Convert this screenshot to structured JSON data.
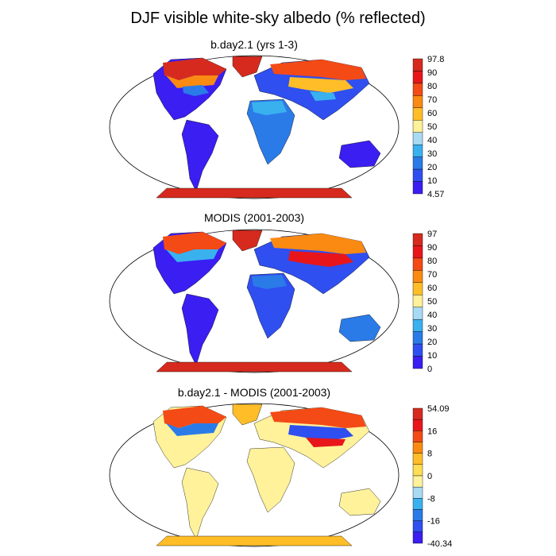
{
  "title": "DJF visible white-sky albedo (% reflected)",
  "panels": [
    {
      "title": "b.day2.1 (yrs 1-3)",
      "colorbar": {
        "labels": [
          "97.8",
          "90",
          "80",
          "70",
          "60",
          "50",
          "40",
          "30",
          "20",
          "10",
          "4.57"
        ],
        "colors": [
          "#d62a1f",
          "#e8161b",
          "#f44a16",
          "#fb8a12",
          "#ffbe28",
          "#fff09a",
          "#a8daf4",
          "#3ab1ef",
          "#2a7be8",
          "#2f4ff0",
          "#3a1ef2"
        ]
      }
    },
    {
      "title": "MODIS (2001-2003)",
      "colorbar": {
        "labels": [
          "97",
          "90",
          "80",
          "70",
          "60",
          "50",
          "40",
          "30",
          "20",
          "10",
          "0"
        ],
        "colors": [
          "#d62a1f",
          "#e8161b",
          "#f44a16",
          "#fb8a12",
          "#ffbe28",
          "#fff09a",
          "#a8daf4",
          "#3ab1ef",
          "#2a7be8",
          "#2f4ff0",
          "#3a1ef2"
        ]
      }
    },
    {
      "title": "b.day2.1 - MODIS (2001-2003)",
      "colorbar": {
        "labels": [
          "54.09",
          "16",
          "8",
          "0",
          "-8",
          "-16",
          "-40.34"
        ],
        "colors": [
          "#d62a1f",
          "#e8161b",
          "#f44a16",
          "#fb8a12",
          "#ffbe28",
          "#ffdd55",
          "#fff29a",
          "#a8daf4",
          "#3ab1ef",
          "#2a7be8",
          "#2f4ff0",
          "#3a1ef2"
        ]
      }
    }
  ]
}
